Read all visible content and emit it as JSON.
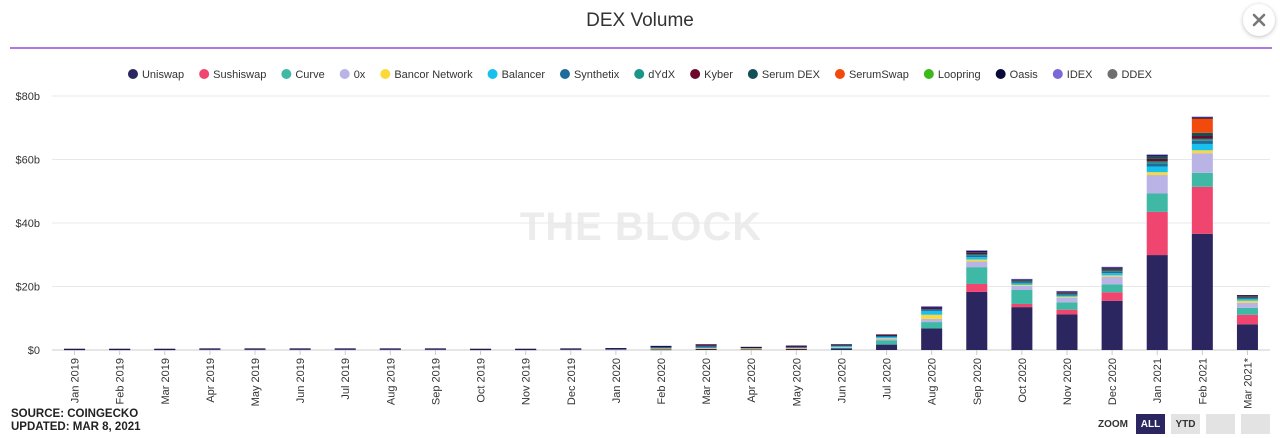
{
  "title": "DEX Volume",
  "watermark": "THE BLOCK",
  "footer": {
    "source": "SOURCE: COINGECKO",
    "updated": "UPDATED: MAR 8, 2021"
  },
  "zoom": {
    "label": "ZOOM",
    "all": "ALL",
    "ytd": "YTD"
  },
  "close_icon": "close-icon",
  "chart_data": {
    "type": "bar",
    "stacked": true,
    "title": "DEX Volume",
    "xlabel": "",
    "ylabel": "",
    "ylim": [
      0,
      80
    ],
    "y_unit": "b",
    "y_ticks": [
      "$0",
      "$20b",
      "$40b",
      "$60b",
      "$80b"
    ],
    "grid": true,
    "legend_position": "top",
    "categories": [
      "Jan 2019",
      "Feb 2019",
      "Mar 2019",
      "Apr 2019",
      "May 2019",
      "Jun 2019",
      "Jul 2019",
      "Aug 2019",
      "Sep 2019",
      "Oct 2019",
      "Nov 2019",
      "Dec 2019",
      "Jan 2020",
      "Feb 2020",
      "Mar 2020",
      "Apr 2020",
      "May 2020",
      "Jun 2020",
      "Jul 2020",
      "Aug 2020",
      "Sep 2020",
      "Oct 2020",
      "Nov 2020",
      "Dec 2020",
      "Jan 2021",
      "Feb 2021",
      "Mar 2021*"
    ],
    "series": [
      {
        "name": "Uniswap",
        "color": "#2b2560",
        "values": [
          0,
          0,
          0,
          0,
          0,
          0,
          0,
          0,
          0,
          0,
          0,
          0,
          0,
          0.2,
          0.4,
          0.3,
          0.4,
          0.5,
          1.7,
          6.8,
          18.3,
          13.5,
          11.2,
          15.5,
          29.9,
          36.6,
          8.1
        ]
      },
      {
        "name": "Sushiswap",
        "color": "#f0456e",
        "values": [
          0,
          0,
          0,
          0,
          0,
          0,
          0,
          0,
          0,
          0,
          0,
          0,
          0,
          0,
          0,
          0,
          0,
          0,
          0,
          0,
          2.5,
          1.0,
          1.5,
          2.7,
          13.6,
          14.8,
          3.0
        ]
      },
      {
        "name": "Curve",
        "color": "#40b8a6",
        "values": [
          0,
          0,
          0,
          0,
          0,
          0,
          0,
          0,
          0,
          0,
          0,
          0,
          0,
          0,
          0,
          0,
          0,
          0.2,
          1.3,
          2.0,
          5.3,
          4.4,
          2.3,
          2.5,
          5.8,
          4.4,
          2.2
        ]
      },
      {
        "name": "0x",
        "color": "#b9b3e6",
        "values": [
          0.1,
          0.1,
          0.1,
          0.1,
          0.1,
          0.1,
          0.1,
          0.1,
          0.1,
          0.1,
          0.1,
          0.1,
          0.1,
          0.2,
          0.2,
          0.1,
          0.2,
          0.3,
          0.5,
          1.0,
          1.8,
          1.3,
          1.5,
          2.4,
          5.8,
          6.2,
          1.6
        ]
      },
      {
        "name": "Bancor Network",
        "color": "#fcd93a",
        "values": [
          0,
          0,
          0,
          0,
          0,
          0,
          0,
          0,
          0,
          0,
          0,
          0,
          0,
          0.1,
          0.1,
          0.1,
          0.1,
          0.1,
          0.2,
          1.3,
          0.6,
          0.3,
          0.3,
          0.4,
          0.9,
          0.9,
          0.6
        ]
      },
      {
        "name": "Balancer",
        "color": "#18c0ee",
        "values": [
          0,
          0,
          0,
          0,
          0,
          0,
          0,
          0,
          0,
          0,
          0,
          0,
          0,
          0,
          0,
          0,
          0,
          0.1,
          0.4,
          1.2,
          0.8,
          0.5,
          0.3,
          0.7,
          1.8,
          2.0,
          0.5
        ]
      },
      {
        "name": "Synthetix",
        "color": "#1f6b9c",
        "values": [
          0.1,
          0.1,
          0.1,
          0.2,
          0.2,
          0.2,
          0.2,
          0.2,
          0.2,
          0.1,
          0.1,
          0.2,
          0.3,
          0.6,
          0.6,
          0.3,
          0.2,
          0.3,
          0.3,
          0.6,
          0.5,
          0.4,
          0.4,
          0.5,
          1.0,
          1.0,
          0.3
        ]
      },
      {
        "name": "dYdX",
        "color": "#1a9688",
        "values": [
          0,
          0,
          0,
          0,
          0,
          0,
          0,
          0,
          0,
          0,
          0,
          0,
          0,
          0,
          0,
          0,
          0,
          0,
          0,
          0,
          0.3,
          0.2,
          0.2,
          0.3,
          0.6,
          0.6,
          0.2
        ]
      },
      {
        "name": "Kyber",
        "color": "#6b0a2b",
        "values": [
          0.1,
          0.1,
          0.1,
          0.1,
          0.1,
          0.1,
          0.1,
          0.1,
          0.1,
          0.1,
          0.1,
          0.1,
          0.1,
          0.1,
          0.3,
          0.1,
          0.3,
          0.2,
          0.3,
          0.4,
          0.6,
          0.3,
          0.3,
          0.4,
          0.8,
          0.9,
          0.3
        ]
      },
      {
        "name": "Serum DEX",
        "color": "#144f57",
        "values": [
          0,
          0,
          0,
          0,
          0,
          0,
          0,
          0,
          0,
          0,
          0,
          0,
          0,
          0,
          0,
          0,
          0,
          0,
          0,
          0,
          0.1,
          0.1,
          0.2,
          0.3,
          0.8,
          1.0,
          0.3
        ]
      },
      {
        "name": "SerumSwap",
        "color": "#f24a0c",
        "values": [
          0,
          0,
          0,
          0,
          0,
          0,
          0,
          0,
          0,
          0,
          0,
          0,
          0,
          0,
          0,
          0,
          0,
          0,
          0,
          0,
          0,
          0,
          0,
          0,
          0,
          4.5,
          0
        ]
      },
      {
        "name": "Loopring",
        "color": "#3db81c",
        "values": [
          0,
          0,
          0,
          0,
          0,
          0,
          0,
          0,
          0,
          0,
          0,
          0,
          0,
          0,
          0,
          0,
          0,
          0,
          0,
          0,
          0,
          0,
          0,
          0,
          0,
          0,
          0
        ]
      },
      {
        "name": "Oasis",
        "color": "#0a0a3a",
        "values": [
          0.1,
          0.1,
          0.1,
          0.1,
          0.1,
          0.1,
          0.1,
          0.1,
          0.1,
          0.1,
          0.1,
          0.1,
          0.1,
          0.1,
          0.2,
          0.1,
          0.2,
          0.1,
          0.2,
          0.3,
          0.5,
          0.3,
          0.3,
          0.4,
          0.5,
          0.5,
          0.2
        ]
      },
      {
        "name": "IDEX",
        "color": "#7b68d6",
        "values": [
          0,
          0,
          0,
          0,
          0,
          0,
          0,
          0,
          0,
          0,
          0,
          0,
          0,
          0,
          0,
          0,
          0,
          0,
          0,
          0.2,
          0.1,
          0.1,
          0.1,
          0.1,
          0.1,
          0.1,
          0
        ]
      },
      {
        "name": "DDEX",
        "color": "#6e6e6e",
        "values": [
          0,
          0,
          0,
          0,
          0,
          0,
          0,
          0,
          0,
          0,
          0,
          0,
          0,
          0,
          0,
          0,
          0,
          0,
          0,
          0,
          0,
          0,
          0,
          0,
          0,
          0,
          0
        ]
      }
    ]
  }
}
